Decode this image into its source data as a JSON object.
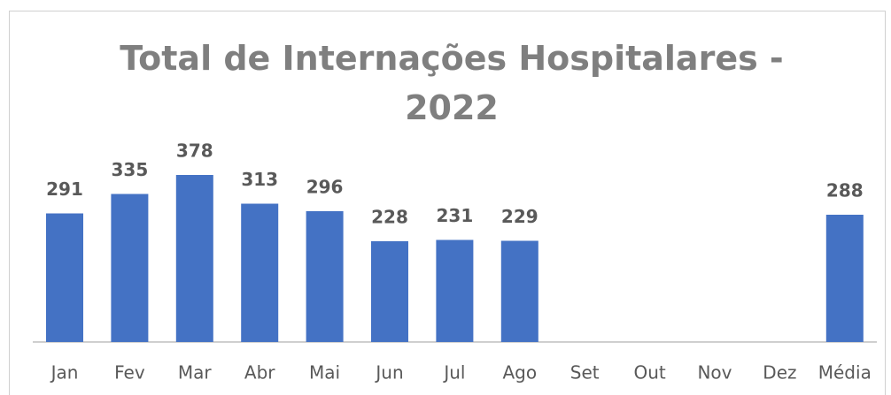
{
  "chart_data": {
    "type": "bar",
    "title": "Total de Internações Hospitalares - 2022",
    "categories": [
      "Jan",
      "Fev",
      "Mar",
      "Abr",
      "Mai",
      "Jun",
      "Jul",
      "Ago",
      "Set",
      "Out",
      "Nov",
      "Dez",
      "Média"
    ],
    "values": [
      291,
      335,
      378,
      313,
      296,
      228,
      231,
      229,
      null,
      null,
      null,
      null,
      288
    ],
    "color": "#4472c4"
  }
}
